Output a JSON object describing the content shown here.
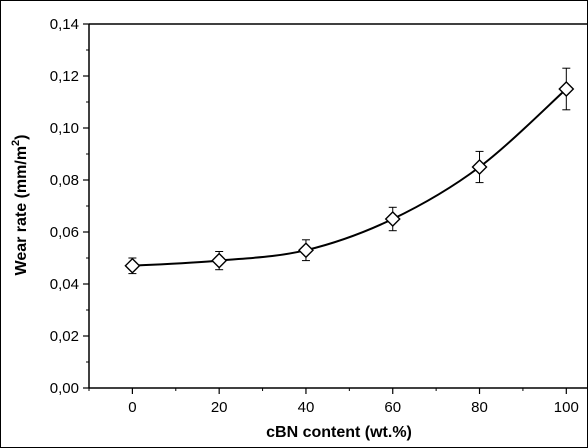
{
  "chart_data": {
    "type": "scatter",
    "xlabel": "cBN content (wt.%)",
    "ylabel_main": "Wear rate (mm/m",
    "ylabel_sup": "2",
    "ylabel_close": ")",
    "xlim": [
      -10,
      105
    ],
    "ylim": [
      0,
      0.14
    ],
    "x_ticks": [
      0,
      20,
      40,
      60,
      80,
      100
    ],
    "x_tick_labels": [
      "0",
      "20",
      "40",
      "60",
      "80",
      "100"
    ],
    "y_ticks": [
      0,
      0.02,
      0.04,
      0.06,
      0.08,
      0.1,
      0.12,
      0.14
    ],
    "y_tick_labels": [
      "0,00",
      "0,02",
      "0,04",
      "0,06",
      "0,08",
      "0,10",
      "0,12",
      "0,14"
    ],
    "grid": false,
    "marker": "open-diamond",
    "fit_curve": "smooth",
    "series": [
      {
        "x": [
          0,
          20,
          40,
          60,
          80,
          100
        ],
        "y": [
          0.047,
          0.049,
          0.053,
          0.065,
          0.085,
          0.115
        ],
        "error": [
          0.003,
          0.0035,
          0.004,
          0.0045,
          0.006,
          0.008
        ]
      }
    ]
  }
}
